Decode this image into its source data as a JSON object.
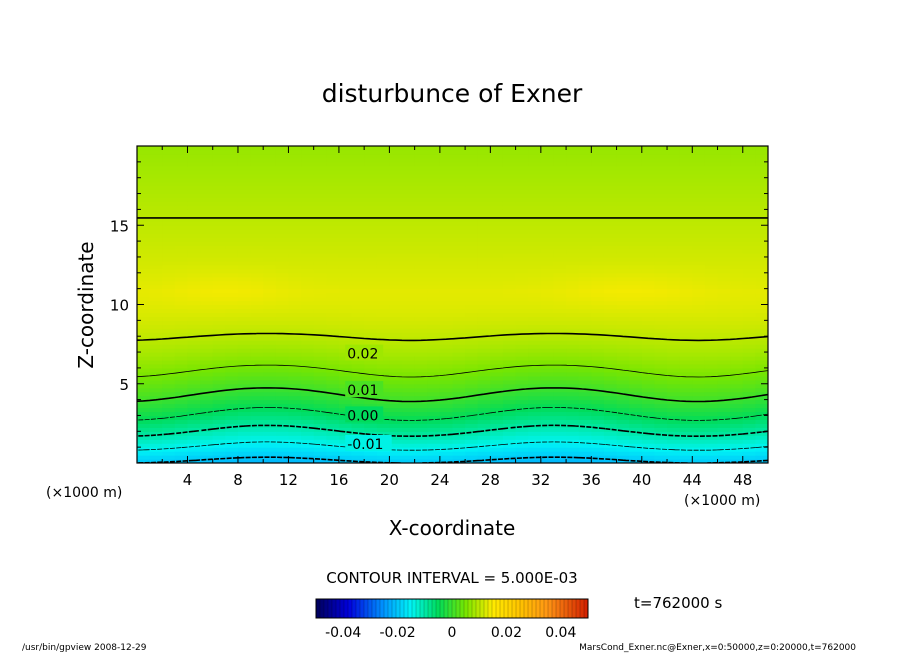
{
  "chart_data": {
    "type": "heatmap",
    "title": "disturbunce of Exner",
    "xlabel": "X-coordinate",
    "ylabel": "Z-coordinate",
    "x_unit": "(×1000 m)",
    "y_unit": "(×1000 m)",
    "xlim": [
      0,
      50
    ],
    "ylim": [
      0,
      20
    ],
    "x_ticks": [
      4,
      8,
      12,
      16,
      20,
      24,
      28,
      32,
      36,
      40,
      44,
      48
    ],
    "y_ticks": [
      5,
      10,
      15
    ],
    "contour_interval_text": "CONTOUR INTERVAL = 5.000E-03",
    "contour_labels": [
      {
        "label": "0.02",
        "x": 16.5,
        "z": 6.9
      },
      {
        "label": "0.01",
        "x": 16.5,
        "z": 4.6
      },
      {
        "label": "0.00",
        "x": 16.5,
        "z": 3.0
      },
      {
        "label": "-0.01",
        "x": 16.5,
        "z": 1.2
      }
    ],
    "color_scale": {
      "min": -0.05,
      "max": 0.05,
      "tick_labels": [
        "-0.04",
        "-0.02",
        "0",
        "0.02",
        "0.04"
      ],
      "tick_values": [
        -0.04,
        -0.02,
        0,
        0.02,
        0.04
      ]
    },
    "time_label": "t=762000 s"
  },
  "footer": {
    "left": "/usr/bin/gpview   2008-12-29",
    "right": "MarsCond_Exner.nc@Exner,x=0:50000,z=0:20000,t=762000"
  }
}
